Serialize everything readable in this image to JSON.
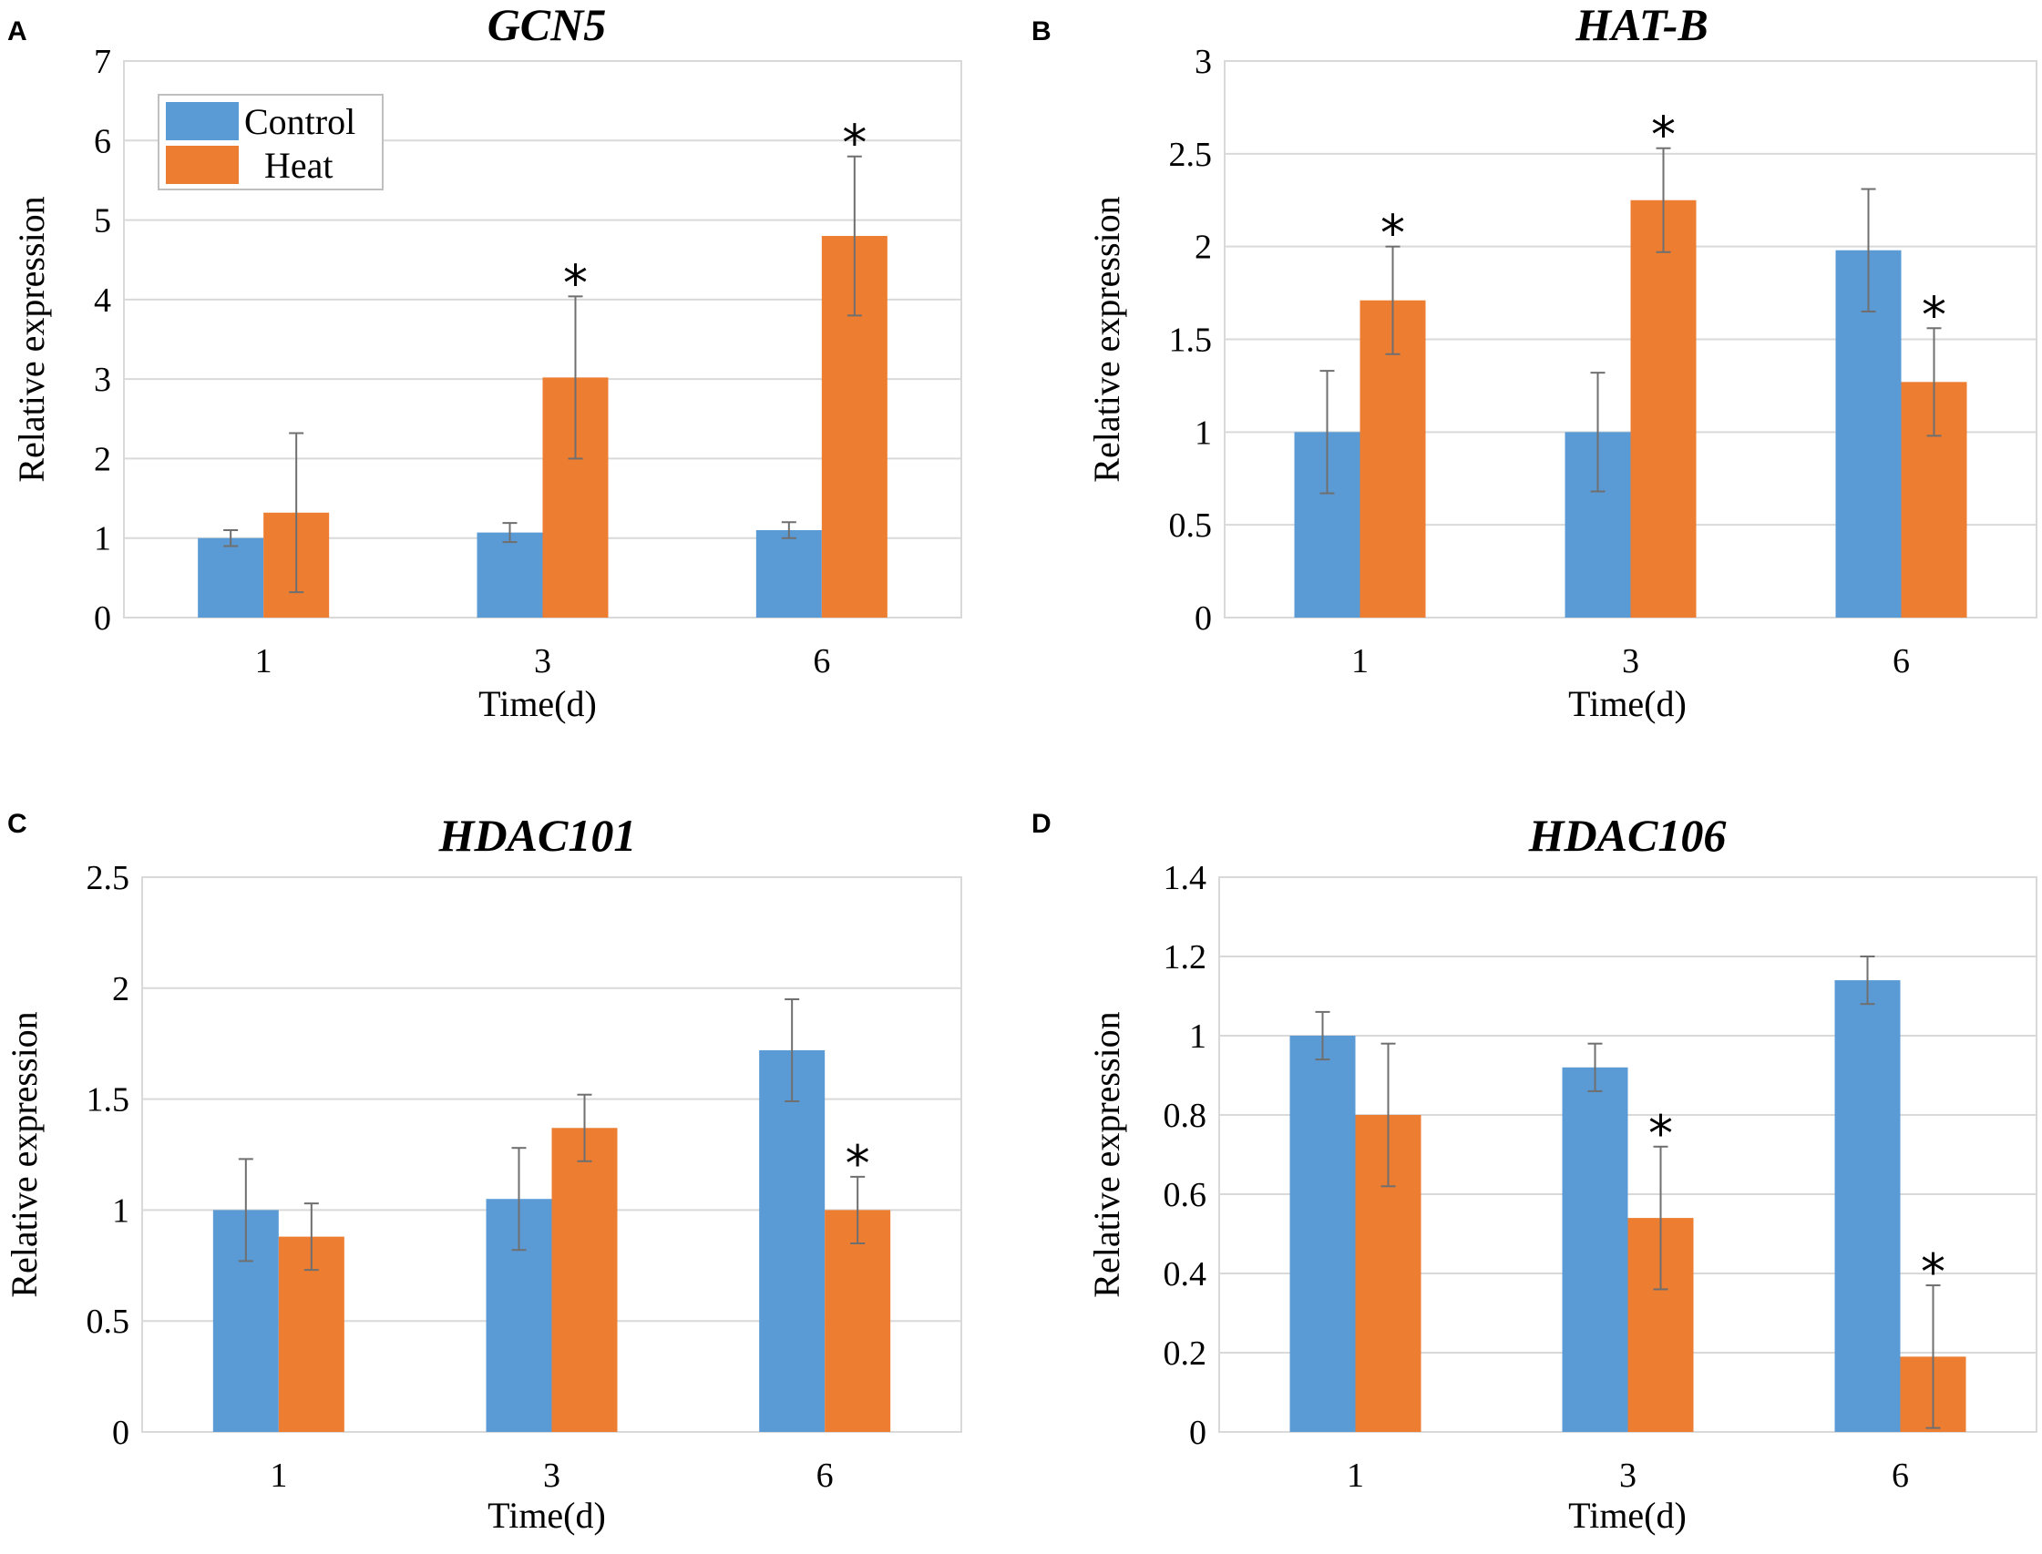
{
  "colors": {
    "control": "#5b9bd5",
    "heat": "#ed7d31",
    "grid": "#d9d9d9",
    "error": "#6f6f6f"
  },
  "legend": {
    "control_label": "Control",
    "heat_label": "Heat"
  },
  "chart_data": [
    {
      "panel": "A",
      "type": "bar",
      "title": "GCN5",
      "xlabel": "Time(d)",
      "ylabel": "Relative expression",
      "categories": [
        "1",
        "3",
        "6"
      ],
      "ylim": [
        0,
        7
      ],
      "yticks": [
        0,
        1,
        2,
        3,
        4,
        5,
        6,
        7
      ],
      "ytick_labels": [
        "0",
        "1",
        "2",
        "3",
        "4",
        "5",
        "6",
        "7"
      ],
      "legend": true,
      "series": [
        {
          "name": "Control",
          "values": [
            1.0,
            1.07,
            1.1
          ],
          "errors": [
            0.1,
            0.12,
            0.1
          ]
        },
        {
          "name": "Heat",
          "values": [
            1.32,
            3.02,
            4.8
          ],
          "errors": [
            1.0,
            1.02,
            1.0
          ]
        }
      ],
      "significance": [
        {
          "category": 1,
          "series": 1,
          "label": "*"
        },
        {
          "category": 2,
          "series": 1,
          "label": "*"
        }
      ]
    },
    {
      "panel": "B",
      "type": "bar",
      "title": "HAT-B",
      "xlabel": "Time(d)",
      "ylabel": "Relative expression",
      "categories": [
        "1",
        "3",
        "6"
      ],
      "ylim": [
        0,
        3
      ],
      "yticks": [
        0,
        0.5,
        1,
        1.5,
        2,
        2.5,
        3
      ],
      "ytick_labels": [
        "0",
        "0.5",
        "1",
        "1.5",
        "2",
        "2.5",
        "3"
      ],
      "legend": false,
      "series": [
        {
          "name": "Control",
          "values": [
            1.0,
            1.0,
            1.98
          ],
          "errors": [
            0.33,
            0.32,
            0.33
          ]
        },
        {
          "name": "Heat",
          "values": [
            1.71,
            2.25,
            1.27
          ],
          "errors": [
            0.29,
            0.28,
            0.29
          ]
        }
      ],
      "significance": [
        {
          "category": 0,
          "series": 1,
          "label": "*"
        },
        {
          "category": 1,
          "series": 1,
          "label": "*"
        },
        {
          "category": 2,
          "series": 1,
          "label": "*"
        }
      ]
    },
    {
      "panel": "C",
      "type": "bar",
      "title": "HDAC101",
      "xlabel": "Time(d)",
      "ylabel": "Relative expression",
      "categories": [
        "1",
        "3",
        "6"
      ],
      "ylim": [
        0,
        2.5
      ],
      "yticks": [
        0,
        0.5,
        1,
        1.5,
        2,
        2.5
      ],
      "ytick_labels": [
        "0",
        "0.5",
        "1",
        "1.5",
        "2",
        "2.5"
      ],
      "legend": false,
      "series": [
        {
          "name": "Control",
          "values": [
            1.0,
            1.05,
            1.72
          ],
          "errors": [
            0.23,
            0.23,
            0.23
          ]
        },
        {
          "name": "Heat",
          "values": [
            0.88,
            1.37,
            1.0
          ],
          "errors": [
            0.15,
            0.15,
            0.15
          ]
        }
      ],
      "significance": [
        {
          "category": 2,
          "series": 1,
          "label": "*"
        }
      ]
    },
    {
      "panel": "D",
      "type": "bar",
      "title": "HDAC106",
      "xlabel": "Time(d)",
      "ylabel": "Relative expression",
      "categories": [
        "1",
        "3",
        "6"
      ],
      "ylim": [
        0,
        1.4
      ],
      "yticks": [
        0,
        0.2,
        0.4,
        0.6,
        0.8,
        1,
        1.2,
        1.4
      ],
      "ytick_labels": [
        "0",
        "0.2",
        "0.4",
        "0.6",
        "0.8",
        "1",
        "1.2",
        "1.4"
      ],
      "legend": false,
      "series": [
        {
          "name": "Control",
          "values": [
            1.0,
            0.92,
            1.14
          ],
          "errors": [
            0.06,
            0.06,
            0.06
          ]
        },
        {
          "name": "Heat",
          "values": [
            0.8,
            0.54,
            0.19
          ],
          "errors": [
            0.18,
            0.18,
            0.18
          ]
        }
      ],
      "significance": [
        {
          "category": 1,
          "series": 1,
          "label": "*"
        },
        {
          "category": 2,
          "series": 1,
          "label": "*"
        }
      ]
    }
  ]
}
